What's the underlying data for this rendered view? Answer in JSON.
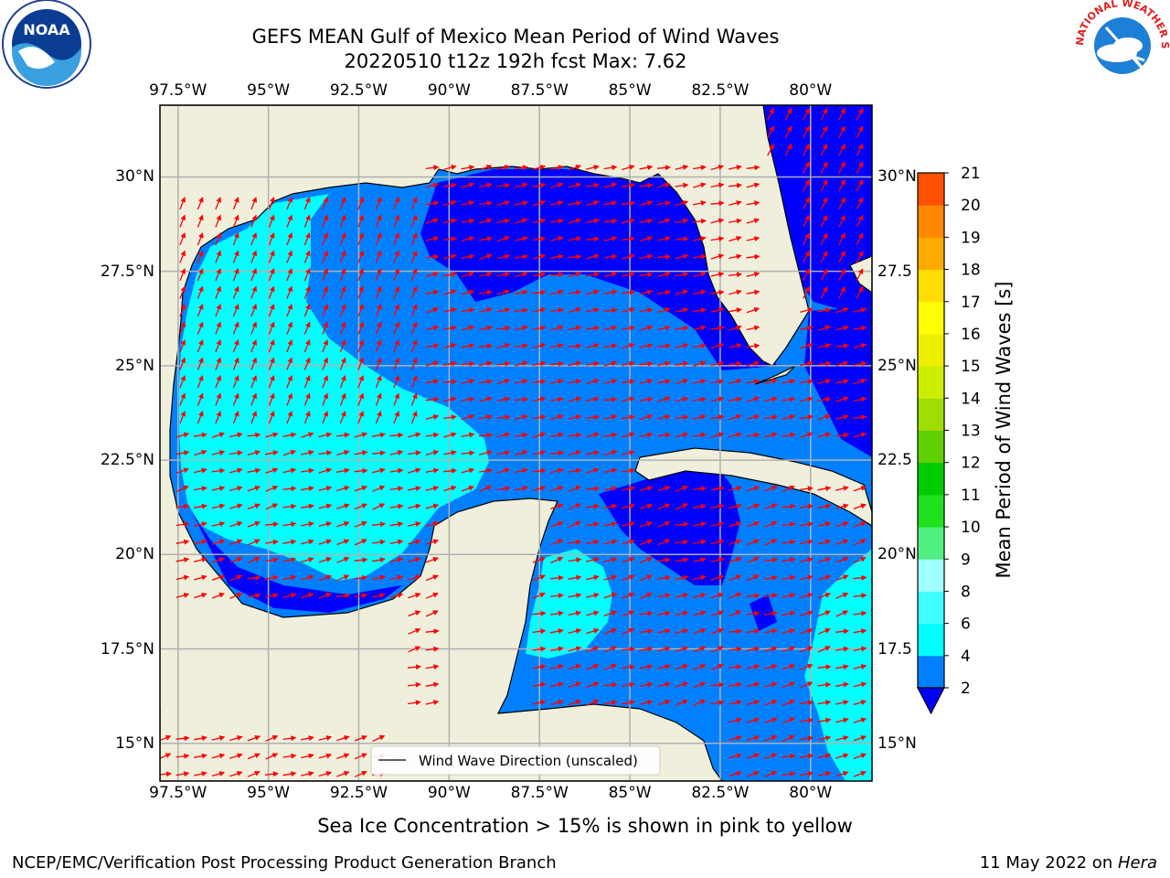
{
  "title": {
    "line1": "GEFS MEAN Gulf of Mexico Mean Period of Wind Waves",
    "line2": "20220510 t12z 192h fcst   Max: 7.62"
  },
  "logos": {
    "noaa": {
      "text": "NOAA",
      "ring_text": "NATIONAL OCEANIC AND ATMOSPHERIC ADMINISTRATION · U.S. DEPARTMENT OF COMMERCE"
    },
    "nws": {
      "ring_text": "NATIONAL WEATHER SERVICE"
    }
  },
  "map": {
    "lon_ticks": [
      "97.5°W",
      "95°W",
      "92.5°W",
      "90°W",
      "87.5°W",
      "85°W",
      "82.5°W",
      "80°W"
    ],
    "lat_ticks_left": [
      "30°N",
      "27.5°N",
      "25°N",
      "22.5°N",
      "20°N",
      "17.5°N",
      "15°N"
    ],
    "lat_ticks_right": [
      "30°N",
      "27.5",
      "25°N",
      "22.5",
      "20°N",
      "17.5",
      "15°N"
    ],
    "legend": "Wind Wave Direction (unscaled)",
    "extent": {
      "lon": [
        -98,
        -78.3
      ],
      "lat": [
        14,
        31.9
      ]
    },
    "grid": true,
    "land_color": "#efefdc",
    "vector_color": "#ff0000"
  },
  "colorbar": {
    "label": "Mean Period of Wind Waves [s]",
    "ticks": [
      "2",
      "4",
      "6",
      "8",
      "9",
      "10",
      "11",
      "12",
      "13",
      "14",
      "15",
      "16",
      "17",
      "18",
      "19",
      "20",
      "21"
    ],
    "extend": "min",
    "under_color": "#0000ff",
    "colors": [
      "#0080ff",
      "#00ffff",
      "#40ffff",
      "#a0ffff",
      "#50f080",
      "#20e020",
      "#00cc00",
      "#60d000",
      "#a0dd00",
      "#ccee00",
      "#eeee00",
      "#ffff00",
      "#ffdd00",
      "#ffaa00",
      "#ff8800",
      "#ff5000",
      "#ff2000",
      "#ff0000"
    ]
  },
  "captions": {
    "sea_ice": "Sea Ice Concentration > 15% is shown in pink to yellow",
    "branch": "NCEP/EMC/Verification Post Processing Product Generation Branch",
    "date": "11 May 2022 on ",
    "machine": "Hera"
  }
}
